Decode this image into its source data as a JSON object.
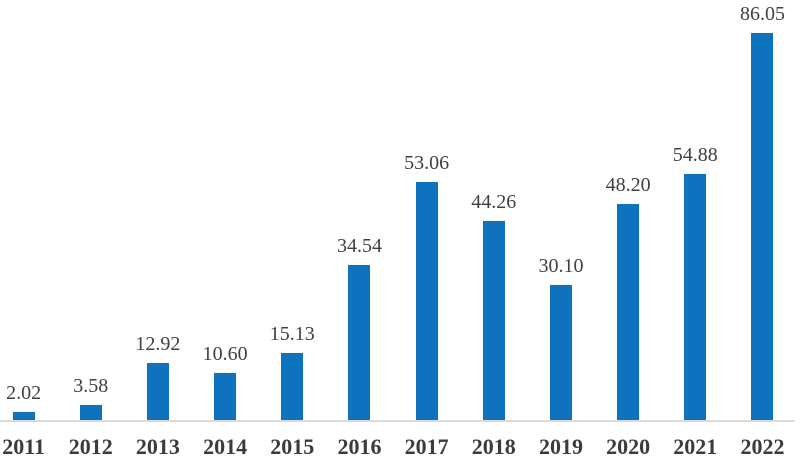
{
  "chart_data": {
    "type": "bar",
    "title": "",
    "xlabel": "",
    "ylabel": "",
    "categories": [
      "2011",
      "2012",
      "2013",
      "2014",
      "2015",
      "2016",
      "2017",
      "2018",
      "2019",
      "2020",
      "2021",
      "2022"
    ],
    "values": [
      2.02,
      3.58,
      12.92,
      10.6,
      15.13,
      34.54,
      53.06,
      44.26,
      30.1,
      48.2,
      54.88,
      86.05
    ],
    "value_labels": [
      "2.02",
      "3.58",
      "12.92",
      "10.60",
      "15.13",
      "34.54",
      "53.06",
      "44.26",
      "30.10",
      "48.20",
      "54.88",
      "86.05"
    ],
    "ylim": [
      0,
      90
    ],
    "grid": false,
    "legend_position": "none",
    "colors": {
      "bar": "#0e72be",
      "axis_line": "#d9d9d9",
      "value_text": "#404040",
      "category_text": "#3b3b3b",
      "background": "#ffffff"
    }
  }
}
